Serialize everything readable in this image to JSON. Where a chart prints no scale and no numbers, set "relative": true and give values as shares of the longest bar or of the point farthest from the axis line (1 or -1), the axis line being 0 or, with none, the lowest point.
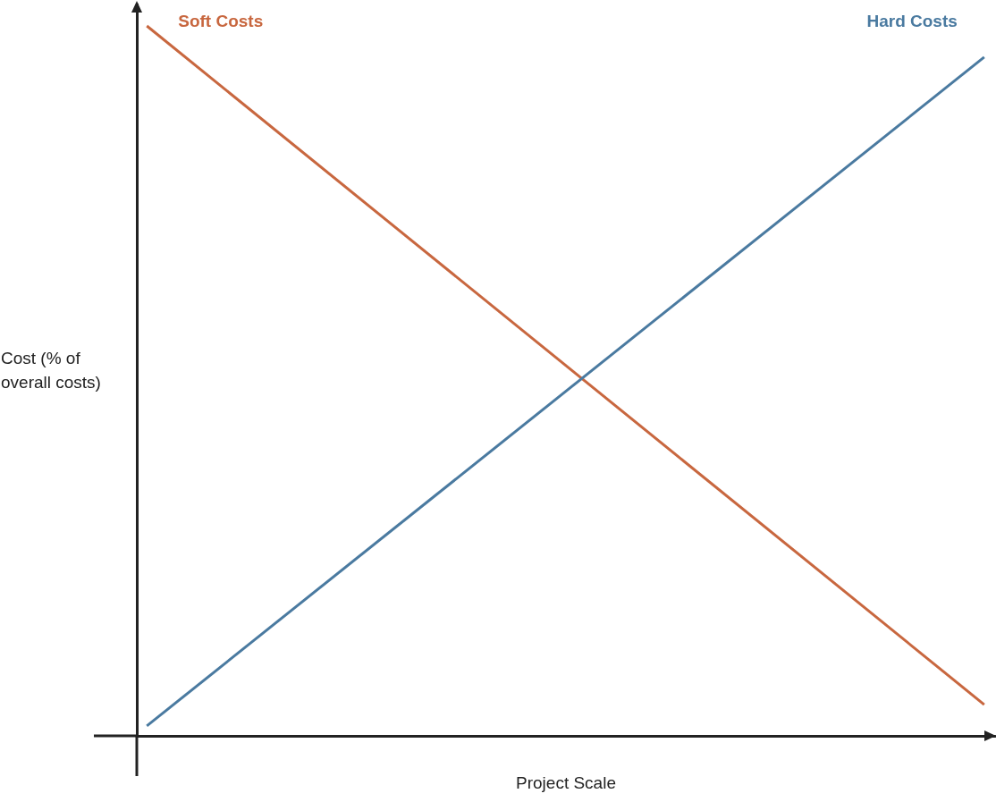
{
  "chart_data": {
    "type": "line",
    "relative": true,
    "xlabel": "Project Scale",
    "ylabel": "Cost (% of overall costs)",
    "categories": [
      null,
      null
    ],
    "series": [
      {
        "name": "Soft Costs",
        "color": "#c8673f",
        "values": [
          1,
          0.044
        ]
      },
      {
        "name": "Hard Costs",
        "color": "#4a7aa0",
        "values": [
          0.014,
          0.956
        ]
      }
    ],
    "legend": false,
    "grid": false,
    "marker": "none",
    "line_style": "solid"
  }
}
